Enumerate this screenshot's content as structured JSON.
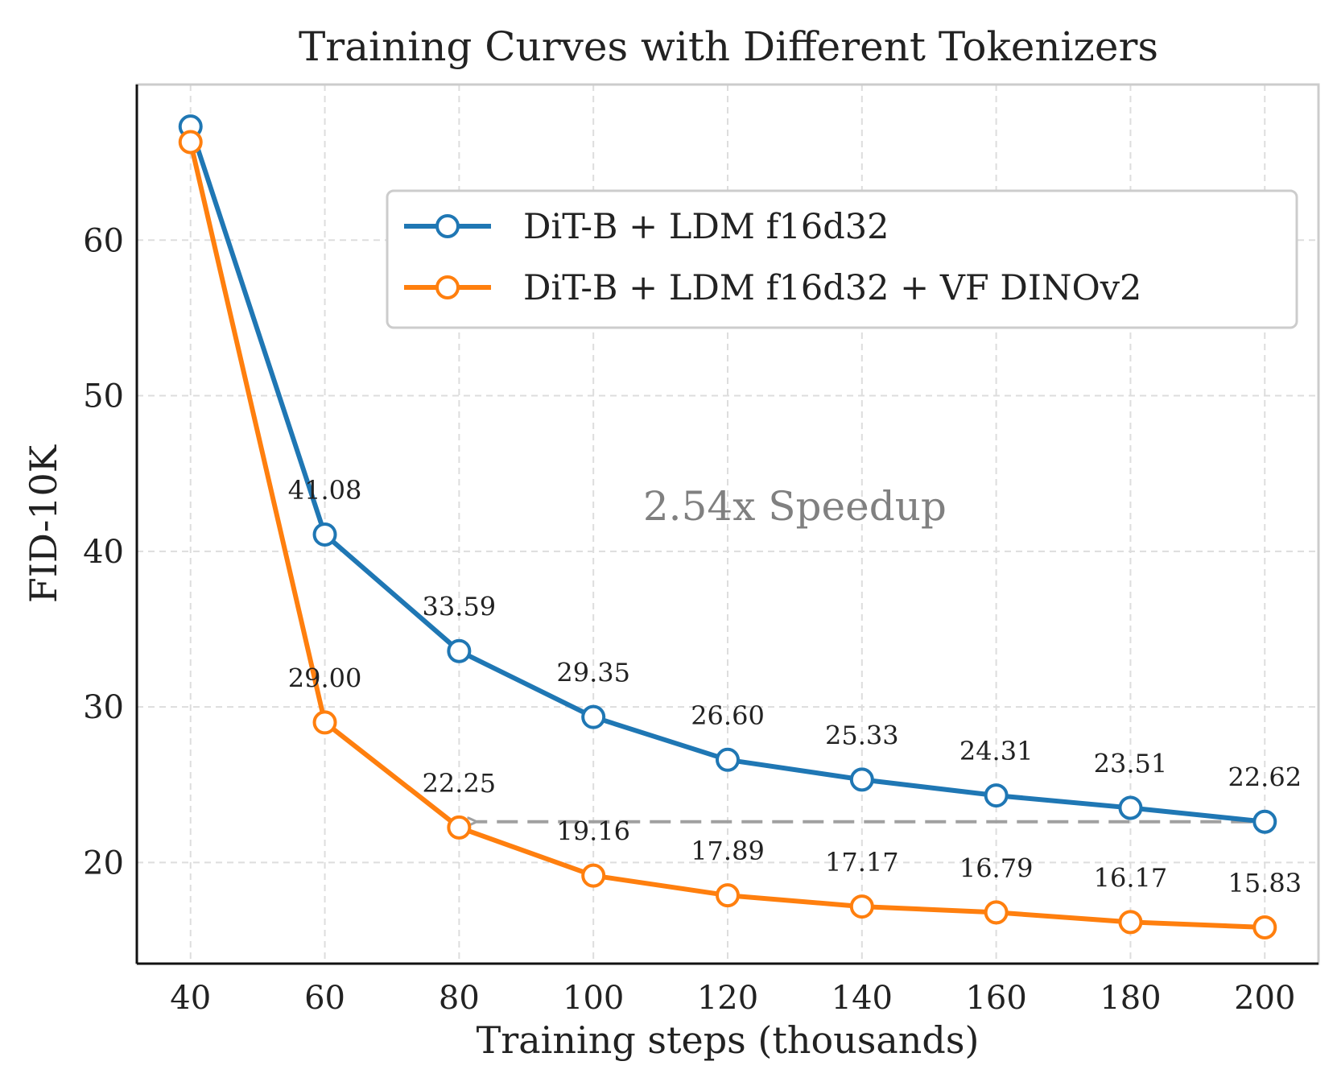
{
  "chart_data": {
    "type": "line",
    "title": "Training Curves with Different Tokenizers",
    "xlabel": "Training steps (thousands)",
    "ylabel": "FID-10K",
    "x": [
      40,
      60,
      80,
      100,
      120,
      140,
      160,
      180,
      200
    ],
    "x_ticks": [
      40,
      60,
      80,
      100,
      120,
      140,
      160,
      180,
      200
    ],
    "y_ticks": [
      20,
      30,
      40,
      50,
      60
    ],
    "xlim": [
      32,
      208
    ],
    "ylim": [
      13.5,
      70
    ],
    "grid": true,
    "legend_position": "top-right",
    "series": [
      {
        "name": "DiT-B + LDM f16d32",
        "color": "#1f77b4",
        "values": [
          67.3,
          41.08,
          33.59,
          29.35,
          26.6,
          25.33,
          24.31,
          23.51,
          22.62
        ],
        "labels": [
          "",
          "41.08",
          "33.59",
          "29.35",
          "26.60",
          "25.33",
          "24.31",
          "23.51",
          "22.62"
        ]
      },
      {
        "name": "DiT-B + LDM f16d32 + VF DINOv2",
        "color": "#ff7f0e",
        "values": [
          66.3,
          29.0,
          22.25,
          19.16,
          17.89,
          17.17,
          16.79,
          16.17,
          15.83
        ],
        "labels": [
          "",
          "29.00",
          "22.25",
          "19.16",
          "17.89",
          "17.17",
          "16.79",
          "16.17",
          "15.83"
        ]
      }
    ],
    "annotations": [
      {
        "text": "2.54x Speedup",
        "x": 130,
        "y": 42,
        "color": "#808080"
      }
    ],
    "arrow": {
      "from": [
        200,
        22.62
      ],
      "to": [
        80,
        22.62
      ],
      "style": "dashed",
      "color": "#a0a0a0"
    }
  }
}
